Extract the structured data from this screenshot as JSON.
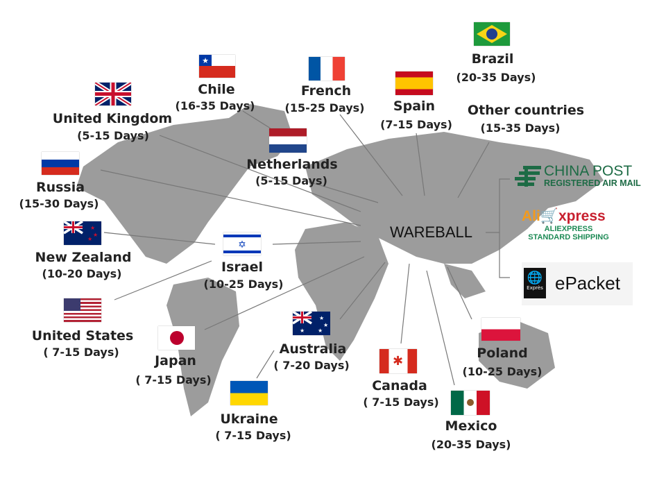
{
  "origin": "WAREBALL",
  "colors": {
    "land": "#9c9c9c",
    "lines": "#777777",
    "text": "#222222",
    "china_post": "#1d6b45"
  },
  "destinations": [
    {
      "id": "brazil",
      "name": "Brazil",
      "days": "(20-35 Days)",
      "flag": "brazil-flag"
    },
    {
      "id": "chile",
      "name": "Chile",
      "days": "(16-35 Days)",
      "flag": "chile-flag"
    },
    {
      "id": "french",
      "name": "French",
      "days": "(15-25 Days)",
      "flag": "france-flag"
    },
    {
      "id": "spain",
      "name": "Spain",
      "days": "(7-15 Days)",
      "flag": "spain-flag"
    },
    {
      "id": "other",
      "name": "Other countries",
      "days": "(15-35 Days)"
    },
    {
      "id": "uk",
      "name": "United Kingdom",
      "days": "(5-15 Days)",
      "flag": "uk-flag"
    },
    {
      "id": "netherlands",
      "name": "Netherlands",
      "days": "(5-15 Days)",
      "flag": "netherlands-flag"
    },
    {
      "id": "russia",
      "name": "Russia",
      "days": "(15-30 Days)",
      "flag": "russia-flag"
    },
    {
      "id": "nz",
      "name": "New Zealand",
      "days": "(10-20 Days)",
      "flag": "new-zealand-flag"
    },
    {
      "id": "israel",
      "name": "Israel",
      "days": "(10-25 Days)",
      "flag": "israel-flag"
    },
    {
      "id": "us",
      "name": "United States",
      "days": "( 7-15 Days)",
      "flag": "usa-flag"
    },
    {
      "id": "japan",
      "name": "Japan",
      "days": "( 7-15 Days)",
      "flag": "japan-flag"
    },
    {
      "id": "australia",
      "name": "Australia",
      "days": "( 7-20 Days)",
      "flag": "australia-flag"
    },
    {
      "id": "ukraine",
      "name": "Ukraine",
      "days": "( 7-15 Days)",
      "flag": "ukraine-flag"
    },
    {
      "id": "canada",
      "name": "Canada",
      "days": "( 7-15 Days)",
      "flag": "canada-flag"
    },
    {
      "id": "poland",
      "name": "Poland",
      "days": "(10-25 Days)",
      "flag": "poland-flag"
    },
    {
      "id": "mexico",
      "name": "Mexico",
      "days": "(20-35 Days)",
      "flag": "mexico-flag"
    }
  ],
  "carriers": {
    "china_post": {
      "title": "CHINA POST",
      "subtitle": "REGISTERED AIR MAIL"
    },
    "aliexpress": {
      "logo_a": "Ali",
      "logo_b": "xpress",
      "line1": "ALIEXPRESS",
      "line2": "STANDARD SHIPPING"
    },
    "epacket": {
      "title": "ePacket",
      "badge": "Exprès"
    }
  }
}
